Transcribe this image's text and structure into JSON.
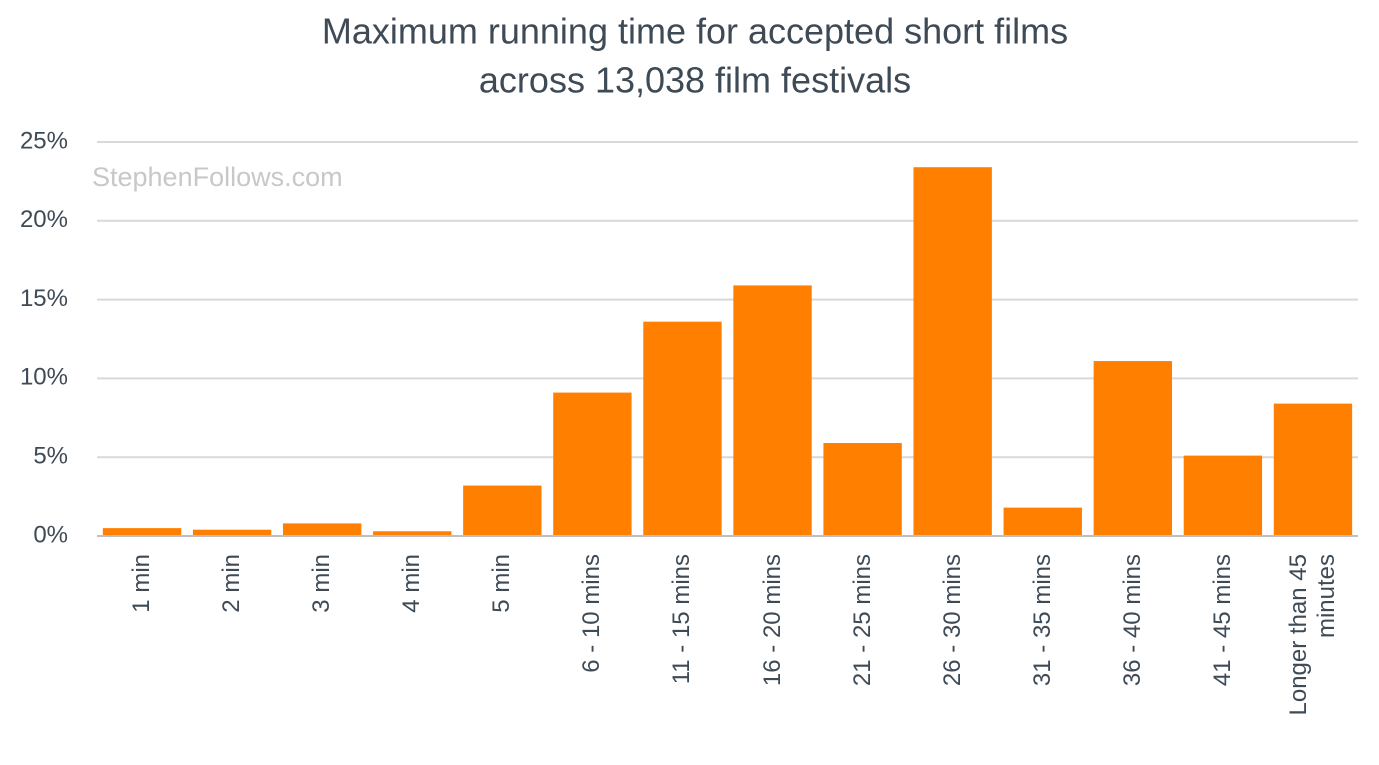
{
  "chart_data": {
    "type": "bar",
    "title": [
      "Maximum running time for accepted short films",
      "across 13,038 film festivals"
    ],
    "watermark": "StephenFollows.com",
    "categories": [
      "1 min",
      "2 min",
      "3 min",
      "4 min",
      "5 min",
      "6 - 10 mins",
      "11 - 15 mins",
      "16 - 20 mins",
      "21 - 25 mins",
      "26 - 30 mins",
      "31 - 35 mins",
      "36 - 40 mins",
      "41 - 45 mins",
      "Longer than 45 minutes"
    ],
    "values": [
      0.5,
      0.4,
      0.8,
      0.3,
      3.2,
      9.1,
      13.6,
      15.9,
      5.9,
      23.4,
      1.8,
      11.1,
      5.1,
      8.4
    ],
    "color": "#ff7f00",
    "ylim": [
      0,
      25
    ],
    "yticks": [
      {
        "value": 0,
        "label": "0%"
      },
      {
        "value": 5,
        "label": "5%"
      },
      {
        "value": 10,
        "label": "10%"
      },
      {
        "value": 15,
        "label": "15%"
      },
      {
        "value": 20,
        "label": "20%"
      },
      {
        "value": 25,
        "label": "25%"
      }
    ],
    "grid": true
  }
}
